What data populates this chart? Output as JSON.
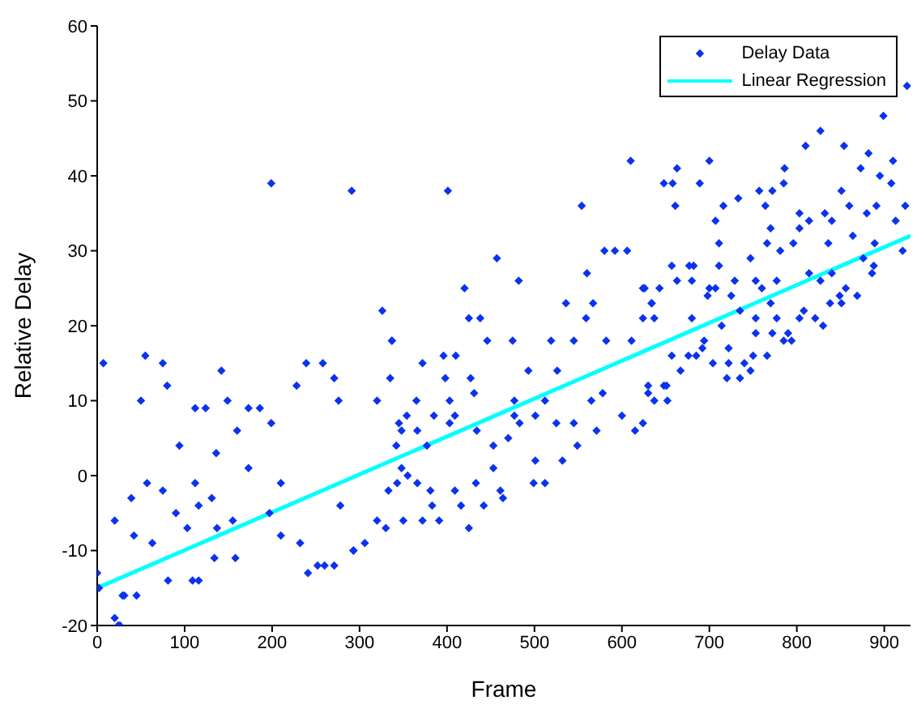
{
  "chart_data": {
    "type": "scatter",
    "xlabel": "Frame",
    "ylabel": "Relative Delay",
    "xlim": [
      0,
      930
    ],
    "ylim": [
      -20,
      60
    ],
    "xticks": [
      0,
      100,
      200,
      300,
      400,
      500,
      600,
      700,
      800,
      900
    ],
    "yticks": [
      -20,
      -10,
      0,
      10,
      20,
      30,
      40,
      50,
      60
    ],
    "grid": false,
    "legend": "top right",
    "series": [
      {
        "name": "Delay Data",
        "type": "scatter",
        "marker": "diamond",
        "color": "#0a32f0",
        "x": [
          0,
          2,
          7,
          20,
          24,
          26,
          29,
          31,
          45,
          50,
          55,
          75,
          80,
          20,
          39,
          42,
          57,
          63,
          75,
          90,
          103,
          112,
          116,
          131,
          137,
          155,
          173,
          197,
          210,
          232,
          252,
          278,
          293,
          320,
          333,
          355,
          94,
          136,
          160,
          228,
          210,
          81,
          109,
          116,
          134,
          158,
          241,
          260,
          271,
          293,
          306,
          112,
          124,
          173,
          186,
          199,
          258,
          239,
          271,
          276,
          320,
          345,
          142,
          149,
          199,
          291,
          326,
          337,
          401,
          610,
          554,
          457,
          420,
          482,
          580,
          592,
          606,
          560,
          425,
          438,
          536,
          567,
          559,
          626,
          634,
          337,
          372,
          396,
          410,
          446,
          475,
          519,
          545,
          582,
          611,
          398,
          427,
          493,
          526,
          335,
          365,
          403,
          431,
          477,
          512,
          565,
          578,
          630,
          354,
          385,
          409,
          477,
          501,
          348,
          366,
          403,
          434,
          483,
          525,
          545,
          571,
          600,
          615,
          453,
          501,
          549,
          532,
          453,
          470,
          342,
          377,
          348,
          343,
          366,
          381,
          409,
          433,
          461,
          499,
          512,
          464,
          330,
          350,
          372,
          391,
          416,
          425,
          442,
          383,
          827,
          810,
          854,
          882,
          700,
          663,
          648,
          658,
          689,
          661,
          786,
          785,
          910,
          895,
          908,
          873,
          716,
          733,
          757,
          772,
          764,
          803,
          851,
          860,
          832,
          840,
          880,
          891,
          913,
          924,
          707,
          711,
          770,
          766,
          781,
          803,
          814,
          796,
          836,
          864,
          889,
          921,
          657,
          677,
          682,
          711,
          747,
          876,
          888,
          886,
          814,
          827,
          840,
          663,
          680,
          700,
          698,
          707,
          729,
          725,
          753,
          760,
          777,
          624,
          643,
          770,
          777,
          803,
          808,
          821,
          830,
          838,
          849,
          851,
          869,
          856,
          680,
          714,
          735,
          753,
          753,
          772,
          785,
          794,
          790,
          624,
          637,
          634,
          657,
          685,
          704,
          722,
          722,
          740,
          750,
          766,
          720,
          735,
          747,
          667,
          692,
          694,
          676,
          630,
          637,
          652,
          648,
          624,
          651,
          899,
          926
        ],
        "values": [
          -13,
          -15,
          15,
          -19,
          -20,
          -20,
          -16,
          -16,
          -16,
          10,
          16,
          15,
          12,
          -6,
          -3,
          -8,
          -1,
          -9,
          -2,
          -5,
          -7,
          -1,
          -4,
          -3,
          -7,
          -6,
          1,
          -5,
          -8,
          -9,
          -12,
          -4,
          -10,
          -6,
          -2,
          0,
          4,
          3,
          6,
          12,
          -1,
          -14,
          -14,
          -14,
          -11,
          -11,
          -13,
          -12,
          -12,
          -10,
          -9,
          9,
          9,
          9,
          9,
          7,
          15,
          15,
          13,
          10,
          10,
          7,
          14,
          10,
          39,
          38,
          22,
          18,
          38,
          42,
          36,
          29,
          25,
          26,
          30,
          30,
          30,
          27,
          21,
          21,
          23,
          23,
          21,
          25,
          23,
          18,
          15,
          16,
          16,
          18,
          18,
          18,
          18,
          18,
          18,
          13,
          13,
          14,
          14,
          13,
          10,
          10,
          11,
          10,
          10,
          10,
          11,
          11,
          8,
          8,
          8,
          8,
          8,
          6,
          6,
          7,
          6,
          7,
          7,
          7,
          6,
          8,
          6,
          4,
          2,
          4,
          2,
          1,
          5,
          4,
          4,
          1,
          -1,
          -1,
          -2,
          -2,
          -1,
          -2,
          -1,
          -1,
          -3,
          -7,
          -6,
          -6,
          -6,
          -4,
          -7,
          -4,
          -4,
          46,
          44,
          44,
          43,
          42,
          41,
          39,
          39,
          39,
          36,
          41,
          39,
          42,
          40,
          39,
          41,
          36,
          37,
          38,
          38,
          36,
          35,
          38,
          36,
          35,
          34,
          35,
          36,
          34,
          36,
          34,
          31,
          33,
          31,
          30,
          33,
          34,
          31,
          31,
          32,
          31,
          30,
          28,
          28,
          28,
          28,
          29,
          29,
          28,
          27,
          27,
          26,
          27,
          26,
          26,
          25,
          24,
          25,
          26,
          24,
          26,
          25,
          26,
          25,
          25,
          23,
          21,
          21,
          22,
          21,
          20,
          23,
          24,
          23,
          24,
          25,
          21,
          20,
          22,
          21,
          19,
          19,
          18,
          18,
          19,
          21,
          21,
          23,
          16,
          16,
          15,
          17,
          15,
          15,
          16,
          16,
          13,
          13,
          14,
          14,
          17,
          18,
          16,
          12,
          10,
          10,
          12,
          7,
          12,
          48,
          52
        ]
      },
      {
        "name": "Linear Regression",
        "type": "line",
        "color": "#00ffff",
        "x": [
          0,
          930
        ],
        "values": [
          -15,
          32
        ]
      }
    ]
  }
}
